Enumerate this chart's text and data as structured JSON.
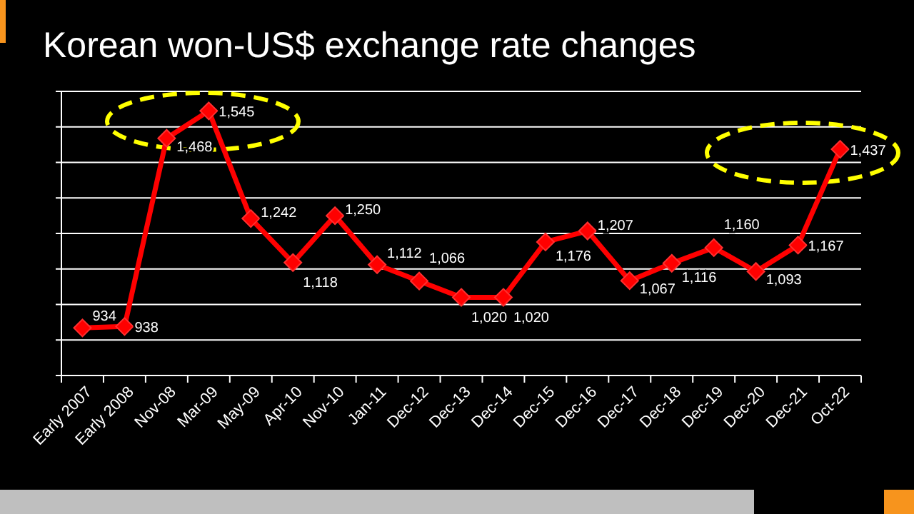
{
  "chart_data": {
    "type": "line",
    "title": "Korean won-US$ exchange rate changes",
    "categories": [
      "Early 2007",
      "Early 2008",
      "Nov-08",
      "Mar-09",
      "May-09",
      "Apr-10",
      "Nov-10",
      "Jan-11",
      "Dec-12",
      "Dec-13",
      "Dec-14",
      "Dec-15",
      "Dec-16",
      "Dec-17",
      "Dec-18",
      "Dec-19",
      "Dec-20",
      "Dec-21",
      "Oct-22"
    ],
    "series": [
      {
        "color": "#ff0000",
        "values": [
          934,
          938,
          1468,
          1545,
          1242,
          1118,
          1250,
          1112,
          1066,
          1020,
          1020,
          1176,
          1207,
          1067,
          1116,
          1160,
          1093,
          1167,
          1437
        ],
        "value_labels": [
          "934",
          "938",
          "1,468",
          "1,545",
          "1,242",
          "1,118",
          "1,250",
          "1,112",
          "1,066",
          "1,020",
          "1,020",
          "1,176",
          "1,207",
          "1,067",
          "1,116",
          "1,160",
          "1,093",
          "1,167",
          "1,437"
        ]
      }
    ],
    "ylim": [
      800,
      1600
    ],
    "yticks": [
      {
        "value": 800,
        "label": null
      },
      {
        "value": 900,
        "label": null
      },
      {
        "value": 1000,
        "label": null
      },
      {
        "value": 1100,
        "label": null
      },
      {
        "value": 1200,
        "label": null
      },
      {
        "value": 1300,
        "label": null
      },
      {
        "value": 1400,
        "label": null
      },
      {
        "value": 1500,
        "label": null
      },
      {
        "value": 1600,
        "label": null
      }
    ],
    "grid": "y",
    "marker": "diamond",
    "line_style": "solid"
  }
}
